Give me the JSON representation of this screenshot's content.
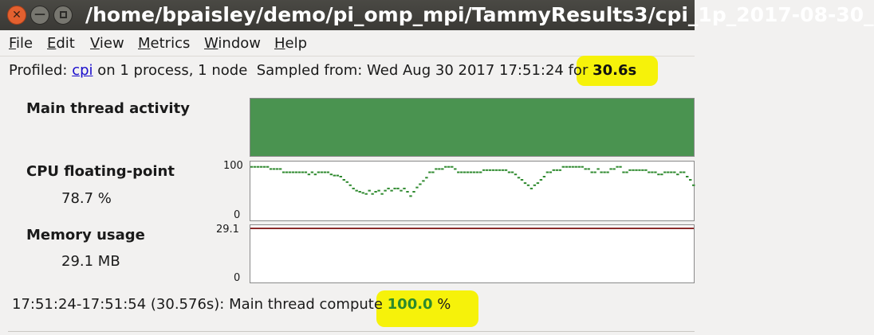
{
  "window": {
    "title": "/home/bpaisley/demo/pi_omp_mpi/TammyResults3/cpi_1p_2017-08-30_",
    "close_glyph": "✕",
    "minimize_glyph": "—"
  },
  "menu": {
    "file": {
      "accel": "F",
      "rest": "ile"
    },
    "edit": {
      "accel": "E",
      "rest": "dit"
    },
    "view": {
      "accel": "V",
      "rest": "iew"
    },
    "metrics": {
      "accel": "M",
      "rest": "etrics"
    },
    "window": {
      "accel": "W",
      "rest": "indow"
    },
    "help": {
      "accel": "H",
      "rest": "elp"
    }
  },
  "info": {
    "profiled_prefix": "Profiled: ",
    "program": "cpi",
    "process_text": " on 1 process, 1 node",
    "sampled": "Sampled from: Wed Aug 30 2017 17:51:24",
    "for_text": " for ",
    "duration": "30.6s"
  },
  "metrics": {
    "main_thread": {
      "label": "Main thread activity",
      "color": "#4a9350"
    },
    "cpu_fp": {
      "label": "CPU floating-point",
      "value": "78.7 %",
      "axis_max": "100",
      "axis_min": "0",
      "color": "#2f8a2f"
    },
    "memory": {
      "label": "Memory usage",
      "value": "29.1 MB",
      "axis_max": "29.1",
      "axis_min": "0",
      "color": "#8a2a2a"
    }
  },
  "footer": {
    "range": "17:51:24-17:51:54 (30.576s): Main thread compute ",
    "percent": "100.0",
    "unit": " %"
  },
  "highlight_color": "#f6f20a",
  "chart_data": {
    "type": "line",
    "title": "CPU floating-point",
    "ylim": [
      0,
      100
    ],
    "x": [
      0,
      1,
      2,
      3,
      4,
      5,
      6,
      7,
      8,
      9,
      10,
      11,
      12,
      13,
      14,
      15,
      16,
      17,
      18,
      19,
      20,
      21,
      22,
      23,
      24,
      25,
      26,
      27,
      28,
      29,
      30,
      31,
      32,
      33,
      34,
      35,
      36,
      37,
      38,
      39,
      40,
      41,
      42,
      43,
      44,
      45,
      46,
      47,
      48,
      49,
      50,
      51,
      52,
      53,
      54,
      55,
      56,
      57,
      58,
      59,
      60,
      61,
      62,
      63,
      64,
      65,
      66,
      67,
      68,
      69,
      70,
      71,
      72,
      73,
      74,
      75,
      76,
      77,
      78,
      79,
      80,
      81,
      82,
      83,
      84,
      85,
      86,
      87,
      88,
      89,
      90,
      91,
      92,
      93,
      94,
      95,
      96,
      97,
      98,
      99,
      100,
      101,
      102,
      103,
      104,
      105,
      106,
      107,
      108,
      109,
      110,
      111,
      112,
      113,
      114,
      115,
      116,
      117,
      118,
      119,
      120,
      121,
      122,
      123,
      124,
      125,
      126,
      127,
      128,
      129,
      130,
      131,
      132,
      133,
      134,
      135,
      136,
      137,
      138,
      139
    ],
    "series": [
      {
        "values": [
          96,
          96,
          96,
          96,
          96,
          96,
          92,
          92,
          92,
          92,
          86,
          86,
          86,
          86,
          86,
          86,
          86,
          86,
          82,
          86,
          82,
          86,
          86,
          86,
          86,
          82,
          80,
          80,
          78,
          72,
          68,
          62,
          56,
          52,
          50,
          48,
          46,
          52,
          46,
          50,
          52,
          46,
          52,
          56,
          52,
          56,
          56,
          52,
          56,
          50,
          42,
          50,
          58,
          64,
          70,
          76,
          86,
          86,
          92,
          92,
          92,
          96,
          96,
          96,
          92,
          86,
          86,
          86,
          86,
          86,
          86,
          86,
          86,
          90,
          90,
          90,
          90,
          90,
          90,
          90,
          90,
          86,
          86,
          82,
          76,
          72,
          66,
          62,
          56,
          62,
          66,
          72,
          78,
          86,
          86,
          90,
          90,
          90,
          96,
          96,
          96,
          96,
          96,
          96,
          96,
          92,
          92,
          86,
          86,
          92,
          86,
          86,
          86,
          92,
          92,
          96,
          96,
          86,
          86,
          90,
          90,
          90,
          90,
          90,
          90,
          86,
          86,
          86,
          82,
          82,
          86,
          86,
          86,
          86,
          82,
          86,
          86,
          78,
          72,
          62
        ]
      }
    ]
  }
}
